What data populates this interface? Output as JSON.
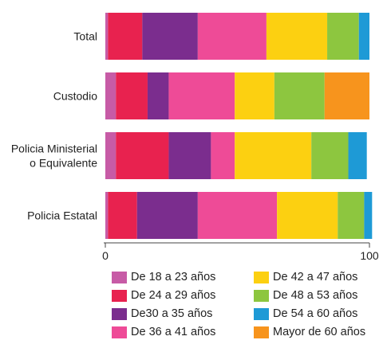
{
  "chart_data": {
    "type": "bar",
    "orientation": "horizontal",
    "stacked": true,
    "categories": [
      "Total",
      "Custodio",
      "Policia Ministerial\no Equivalente",
      "Policia Estatal"
    ],
    "series": [
      {
        "name": "De 18 a 23 años",
        "color": "#c75ba6",
        "values": [
          1,
          4,
          4,
          1
        ]
      },
      {
        "name": "De 24 a 29 años",
        "color": "#e8224f",
        "values": [
          13,
          12,
          20,
          11
        ]
      },
      {
        "name": "De30 a 35 años",
        "color": "#7b2d8e",
        "values": [
          21,
          8,
          16,
          23
        ]
      },
      {
        "name": "De 36 a 41 años",
        "color": "#ee4b97",
        "values": [
          26,
          25,
          9,
          30
        ]
      },
      {
        "name": "De 42 a 47 años",
        "color": "#fcd011",
        "values": [
          23,
          15,
          29,
          23
        ]
      },
      {
        "name": "De 48 a 53 años",
        "color": "#8dc63f",
        "values": [
          12,
          19,
          14,
          10
        ]
      },
      {
        "name": "De 54 a 60 años",
        "color": "#1e9ad6",
        "values": [
          4,
          0,
          7,
          3
        ]
      },
      {
        "name": "Mayor de 60 años",
        "color": "#f7941d",
        "values": [
          0,
          17,
          0,
          0
        ]
      }
    ],
    "xlim": [
      0,
      100
    ],
    "x_ticks": [
      "0",
      "100"
    ],
    "legend_position": "bottom",
    "grid": false
  }
}
